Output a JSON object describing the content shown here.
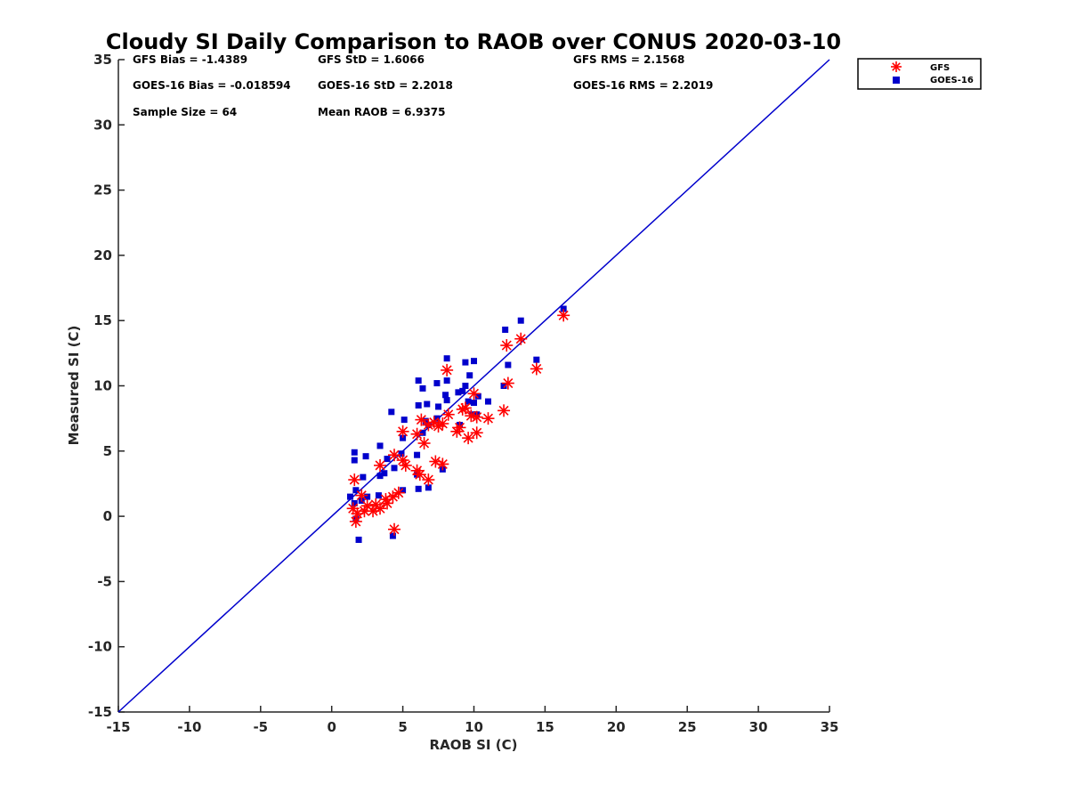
{
  "chart_data": {
    "type": "scatter",
    "title": "Cloudy SI Daily Comparison to RAOB over CONUS 2020-03-10",
    "xlabel": "RAOB SI (C)",
    "ylabel": "Measured SI (C)",
    "xlim": [
      -15,
      35
    ],
    "ylim": [
      -15,
      35
    ],
    "xticks": [
      "-15",
      "-10",
      "-5",
      "0",
      "5",
      "10",
      "15",
      "20",
      "25",
      "30",
      "35"
    ],
    "yticks": [
      "-15",
      "-10",
      "-5",
      "0",
      "5",
      "10",
      "15",
      "20",
      "25",
      "30",
      "35"
    ],
    "grid": false,
    "legend": {
      "position": "outside-top-right",
      "entries": [
        "GFS",
        "GOES-16"
      ]
    },
    "stats": [
      [
        "GFS Bias = -1.4389",
        "GFS StD = 1.6066",
        "GFS RMS = 2.1568"
      ],
      [
        "GOES-16 Bias = -0.018594",
        "GOES-16 StD = 2.2018",
        "GOES-16 RMS = 2.2019"
      ],
      [
        "Sample Size = 64",
        "Mean RAOB = 6.9375"
      ]
    ],
    "reference_line": {
      "from": [
        -15,
        -15
      ],
      "to": [
        35,
        35
      ],
      "color": "#0000cc"
    },
    "series": [
      {
        "name": "GFS",
        "marker": "asterisk",
        "color": "#ff0000",
        "points": [
          [
            16.3,
            15.4
          ],
          [
            13.3,
            13.6
          ],
          [
            12.3,
            13.1
          ],
          [
            14.4,
            11.3
          ],
          [
            8.1,
            11.2
          ],
          [
            12.4,
            10.2
          ],
          [
            10.0,
            9.4
          ],
          [
            9.2,
            8.2
          ],
          [
            12.1,
            8.1
          ],
          [
            9.4,
            8.3
          ],
          [
            8.2,
            7.8
          ],
          [
            9.8,
            7.7
          ],
          [
            10.2,
            7.6
          ],
          [
            11.0,
            7.5
          ],
          [
            6.3,
            7.4
          ],
          [
            7.2,
            7.2
          ],
          [
            7.8,
            7.1
          ],
          [
            6.8,
            7.0
          ],
          [
            7.5,
            6.9
          ],
          [
            9.0,
            6.8
          ],
          [
            8.8,
            6.5
          ],
          [
            10.2,
            6.4
          ],
          [
            9.6,
            6.0
          ],
          [
            5.0,
            6.5
          ],
          [
            6.0,
            6.3
          ],
          [
            6.5,
            5.6
          ],
          [
            4.4,
            4.7
          ],
          [
            7.3,
            4.2
          ],
          [
            7.8,
            4.0
          ],
          [
            5.0,
            4.3
          ],
          [
            5.2,
            3.9
          ],
          [
            3.4,
            3.9
          ],
          [
            6.0,
            3.5
          ],
          [
            6.2,
            3.2
          ],
          [
            6.8,
            2.8
          ],
          [
            1.6,
            2.8
          ],
          [
            4.7,
            1.8
          ],
          [
            3.8,
            1.3
          ],
          [
            2.1,
            1.6
          ],
          [
            4.3,
            1.5
          ],
          [
            2.5,
            0.8
          ],
          [
            3.1,
            0.9
          ],
          [
            1.5,
            0.6
          ],
          [
            2.3,
            0.4
          ],
          [
            1.8,
            0.2
          ],
          [
            3.9,
            1.0
          ],
          [
            3.4,
            0.6
          ],
          [
            2.9,
            0.4
          ],
          [
            1.7,
            -0.4
          ],
          [
            4.4,
            -1.0
          ]
        ]
      },
      {
        "name": "GOES-16",
        "marker": "square",
        "color": "#0000cc",
        "points": [
          [
            16.3,
            15.9
          ],
          [
            13.3,
            15.0
          ],
          [
            12.2,
            14.3
          ],
          [
            12.4,
            11.6
          ],
          [
            14.4,
            12.0
          ],
          [
            8.1,
            12.1
          ],
          [
            9.4,
            11.8
          ],
          [
            10.0,
            11.9
          ],
          [
            9.7,
            10.8
          ],
          [
            8.1,
            10.4
          ],
          [
            6.1,
            10.4
          ],
          [
            6.4,
            9.8
          ],
          [
            7.4,
            10.2
          ],
          [
            12.1,
            10.0
          ],
          [
            9.4,
            10.0
          ],
          [
            9.2,
            9.6
          ],
          [
            8.9,
            9.5
          ],
          [
            8.0,
            9.3
          ],
          [
            10.3,
            9.2
          ],
          [
            9.6,
            8.8
          ],
          [
            10.0,
            8.7
          ],
          [
            11.0,
            8.8
          ],
          [
            6.7,
            8.6
          ],
          [
            6.1,
            8.5
          ],
          [
            7.5,
            8.4
          ],
          [
            8.1,
            8.9
          ],
          [
            9.9,
            7.8
          ],
          [
            10.2,
            7.8
          ],
          [
            4.2,
            8.0
          ],
          [
            7.4,
            7.5
          ],
          [
            6.6,
            7.3
          ],
          [
            5.1,
            7.4
          ],
          [
            9.0,
            7.0
          ],
          [
            6.8,
            7.0
          ],
          [
            6.4,
            6.4
          ],
          [
            5.0,
            6.0
          ],
          [
            3.4,
            5.4
          ],
          [
            1.6,
            4.9
          ],
          [
            1.6,
            4.3
          ],
          [
            2.4,
            4.6
          ],
          [
            4.9,
            4.8
          ],
          [
            6.0,
            4.7
          ],
          [
            7.8,
            3.6
          ],
          [
            6.0,
            3.2
          ],
          [
            4.4,
            3.7
          ],
          [
            3.9,
            4.4
          ],
          [
            3.4,
            3.1
          ],
          [
            2.2,
            3.0
          ],
          [
            3.7,
            3.3
          ],
          [
            6.1,
            2.1
          ],
          [
            6.8,
            2.2
          ],
          [
            5.0,
            2.0
          ],
          [
            1.7,
            2.0
          ],
          [
            1.3,
            1.5
          ],
          [
            3.3,
            1.6
          ],
          [
            2.5,
            1.5
          ],
          [
            2.1,
            1.2
          ],
          [
            1.6,
            1.0
          ],
          [
            1.7,
            -0.2
          ],
          [
            4.3,
            -1.5
          ],
          [
            1.9,
            -1.8
          ]
        ]
      }
    ]
  }
}
